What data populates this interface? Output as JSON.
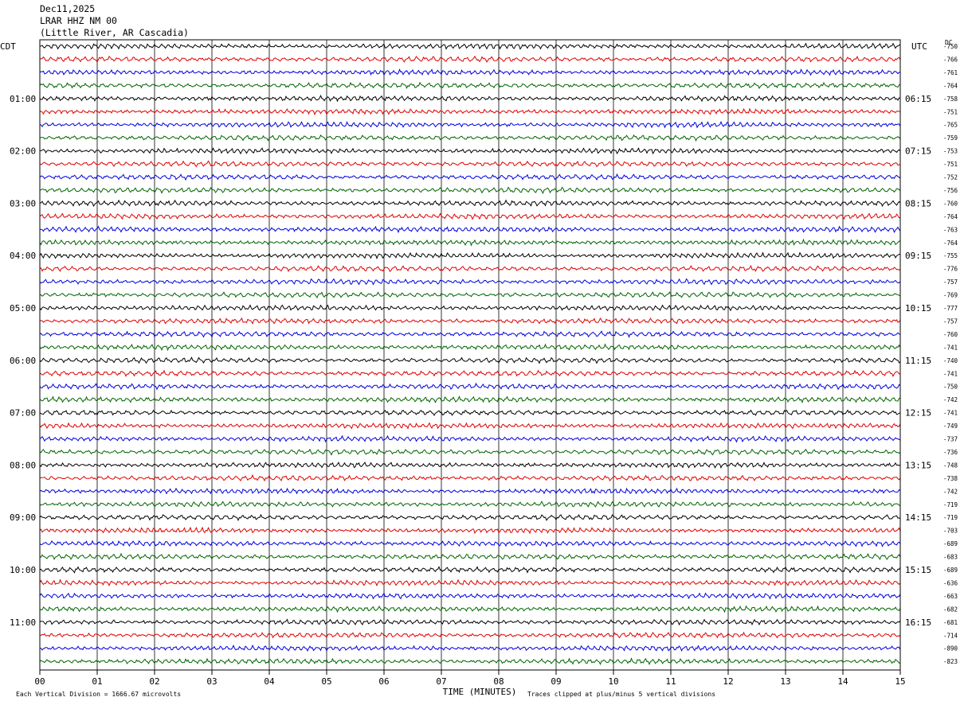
{
  "header": {
    "date": "Dec11,2025",
    "station": "LRAR HHZ NM 00",
    "location": "(Little River, AR Cascadia)"
  },
  "chart_data": {
    "type": "line",
    "subtype": "helicorder",
    "left_tz_label": "CDT",
    "right_tz_label": "UTC",
    "dc_label": "DC",
    "xlabel": "TIME (MINUTES)",
    "x_ticks": [
      "00",
      "01",
      "02",
      "03",
      "04",
      "05",
      "06",
      "07",
      "08",
      "09",
      "10",
      "11",
      "12",
      "13",
      "14",
      "15"
    ],
    "xlim": [
      0,
      15
    ],
    "trace_colors": [
      "#000000",
      "#e00000",
      "#0000e0",
      "#006400"
    ],
    "left_hour_labels": [
      "01:00",
      "02:00",
      "03:00",
      "04:00",
      "05:00",
      "06:00",
      "07:00",
      "08:00",
      "09:00",
      "10:00",
      "11:00"
    ],
    "right_hour_labels": [
      "06:15",
      "07:15",
      "08:15",
      "09:15",
      "10:15",
      "11:15",
      "12:15",
      "13:15",
      "14:15",
      "15:15",
      "16:15"
    ],
    "dc_values": [
      "-750",
      "-766",
      "-761",
      "-764",
      "-758",
      "-751",
      "-765",
      "-759",
      "-753",
      "-751",
      "-752",
      "-756",
      "-760",
      "-764",
      "-763",
      "-764",
      "-755",
      "-776",
      "-757",
      "-769",
      "-777",
      "-757",
      "-760",
      "-741",
      "-740",
      "-741",
      "-750",
      "-742",
      "-741",
      "-749",
      "-737",
      "-736",
      "-748",
      "-738",
      "-742",
      "-719",
      "-719",
      "-703",
      "-689",
      "-683",
      "-689",
      "-636",
      "-663",
      "-682",
      "-681",
      "-714",
      "-890",
      "-823"
    ],
    "footer_left": "Each Vertical Division = 1666.67 microvolts",
    "footer_right": "Traces clipped at plus/minus 5 vertical divisions"
  }
}
